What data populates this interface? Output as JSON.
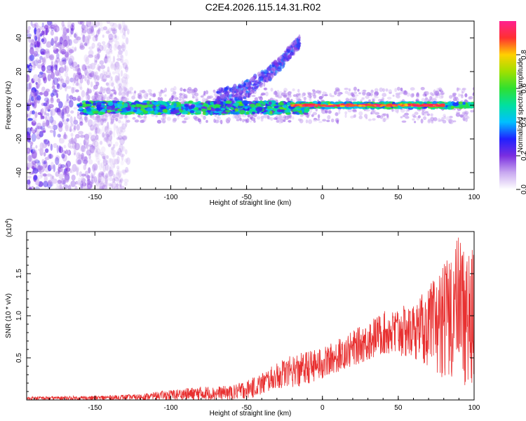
{
  "page_title": "C2E4.2026.115.14.31.R02",
  "chart_data": [
    {
      "type": "heatmap",
      "xlabel": "Height of straight line (km)",
      "ylabel": "Frequency (Hz)",
      "xlim": [
        -195,
        100
      ],
      "ylim": [
        -50,
        50
      ],
      "xticks": [
        -150,
        -100,
        -50,
        0,
        50,
        100
      ],
      "yticks": [
        -40,
        -20,
        0,
        20,
        40
      ],
      "colorbar": {
        "label": "Normalized spectral amplitude",
        "range": [
          0.0,
          1.0
        ],
        "ticks": [
          "0.0",
          "0.2",
          "0.4",
          "0.6",
          "0.8"
        ],
        "colors": [
          "#ffffff",
          "#c9a9f0",
          "#7a2ee0",
          "#2020ff",
          "#00c0ff",
          "#00e0a0",
          "#30e030",
          "#a0e000",
          "#ffd000",
          "#ff3030",
          "#ff2090"
        ]
      },
      "features": {
        "noise_region_x": [
          -195,
          -128
        ],
        "main_band_y": [
          -4,
          4
        ],
        "main_band_intensity": [
          0.35,
          0.95
        ],
        "upper_branch": {
          "x_start": -70,
          "x_end": -15,
          "y_start": 4,
          "y_end": 38
        }
      }
    },
    {
      "type": "line",
      "xlabel": "Height of straight line (km)",
      "ylabel": "SNR (10 * v/v)",
      "y_multiplier": "(x10",
      "y_multiplier_exp": "4",
      "xlim": [
        -195,
        100
      ],
      "ylim": [
        0,
        20000
      ],
      "xticks": [
        -150,
        -100,
        -50,
        0,
        50,
        100
      ],
      "yticks": [
        5000,
        10000,
        15000
      ],
      "ytick_labels": [
        "0.5",
        "1.0",
        "1.5"
      ],
      "series": [
        {
          "color": "#e83030",
          "envelope": {
            "x": [
              -195,
              -150,
              -120,
              -100,
              -80,
              -60,
              -45,
              -35,
              -25,
              -15,
              0,
              20,
              40,
              60,
              70,
              80,
              90,
              100
            ],
            "low": [
              0,
              0,
              0,
              0,
              0,
              0,
              300,
              1000,
              1500,
              1500,
              2500,
              4000,
              5500,
              5000,
              4000,
              2500,
              1500,
              1000
            ],
            "high": [
              400,
              500,
              700,
              1200,
              1600,
              1700,
              2700,
              3800,
              5000,
              5600,
              6200,
              8200,
              10500,
              11500,
              13500,
              16000,
              20000,
              17500
            ]
          }
        }
      ]
    }
  ]
}
